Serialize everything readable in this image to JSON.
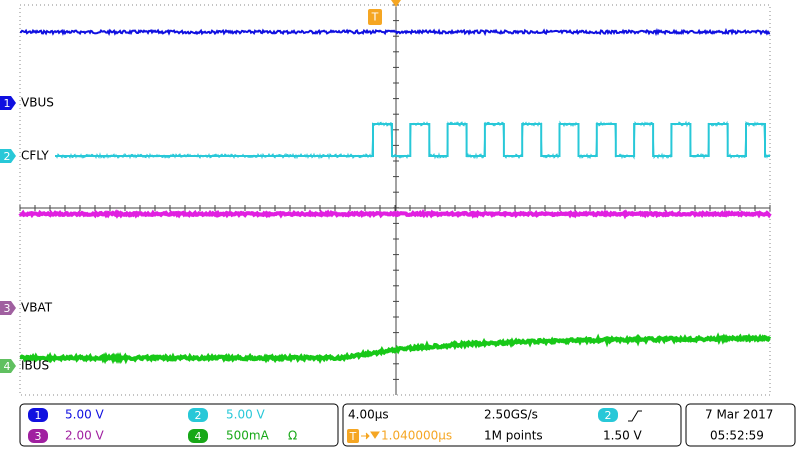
{
  "trigger_marker": "T",
  "channels": [
    {
      "number": "1",
      "label": "VBUS"
    },
    {
      "number": "2",
      "label": "CFLY"
    },
    {
      "number": "3",
      "label": "VBAT"
    },
    {
      "number": "4",
      "label": "IBUS"
    }
  ],
  "status_bar": {
    "ch1": {
      "number": "1",
      "scale": "5.00 V"
    },
    "ch2": {
      "number": "2",
      "scale": "5.00 V"
    },
    "ch3": {
      "number": "3",
      "scale": "2.00 V"
    },
    "ch4": {
      "number": "4",
      "scale": "500mA",
      "unit": "Ω"
    },
    "timebase": "4.00µs",
    "sample_rate": "2.50GS/s",
    "trigger_marker": "T",
    "trigger_delay": "1.040000µs",
    "record_length": "1M points",
    "trigger_source": "2",
    "trigger_level": "1.50 V",
    "date": "7 Mar 2017",
    "time": "05:52:59"
  }
}
